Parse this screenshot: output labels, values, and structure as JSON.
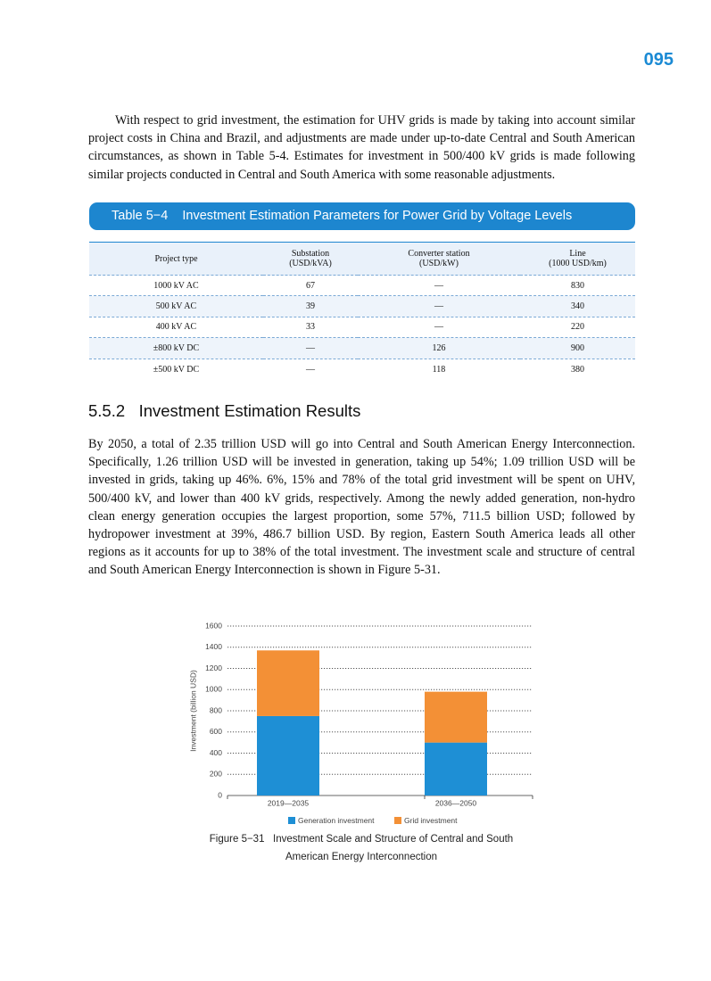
{
  "page_number": "095",
  "paragraphs": [
    "With respect to grid investment, the estimation for UHV grids is made by taking into account similar project costs in China and Brazil, and adjustments are made under up-to-date Central and South American circumstances, as shown in Table 5-4. Estimates for investment in 500/400 kV grids is made following similar projects conducted in Central and South America with some reasonable adjustments.",
    "By 2050, a total of 2.35 trillion USD will go into Central and South American Energy Interconnection. Specifically, 1.26 trillion USD will be invested in generation, taking up 54%; 1.09 trillion USD will be invested in grids, taking up 46%. 6%, 15% and 78% of the total grid investment will be spent on UHV, 500/400 kV, and lower than 400 kV grids, respectively. Among the newly added generation, non-hydro clean energy generation occupies the largest proportion, some 57%, 711.5 billion USD; followed by hydropower investment at 39%, 486.7 billion USD. By region, Eastern South America leads all other regions as it accounts for up to 38% of the total investment. The investment scale and structure of central and South American Energy Interconnection is shown in Figure 5-31."
  ],
  "table": {
    "caption": "Table 5−4    Investment Estimation Parameters for Power Grid by Voltage Levels",
    "header": [
      [
        "Project type"
      ],
      [
        "Substation",
        "(USD/kVA)"
      ],
      [
        "Converter station",
        "(USD/kW)"
      ],
      [
        "Line",
        "(1000 USD/km)"
      ]
    ],
    "rows": [
      [
        "1000 kV AC",
        "67",
        "—",
        "830"
      ],
      [
        "500 kV AC",
        "39",
        "—",
        "340"
      ],
      [
        "400 kV AC",
        "33",
        "—",
        "220"
      ],
      [
        "±800 kV DC",
        "—",
        "126",
        "900"
      ],
      [
        "±500 kV DC",
        "—",
        "118",
        "380"
      ]
    ]
  },
  "section_heading": "5.5.2   Investment Estimation Results",
  "chart_data": {
    "type": "stacked-bar",
    "title": "Figure 5−31   Investment Scale and Structure of Central and South American Energy Interconnection",
    "y_label": "Investment (billion USD)",
    "categories": [
      "2019—2035",
      "2036—2050"
    ],
    "series": [
      {
        "name": "Generation investment",
        "color": "#1e8fd5",
        "values": [
          750,
          500
        ]
      },
      {
        "name": "Grid investment",
        "color": "#f39036",
        "values": [
          620,
          480
        ]
      }
    ],
    "ylim": [
      0,
      1600
    ],
    "yticks": [
      0,
      200,
      400,
      600,
      800,
      1000,
      1200,
      1400,
      1600
    ],
    "grid": true,
    "legend": "bottom"
  }
}
